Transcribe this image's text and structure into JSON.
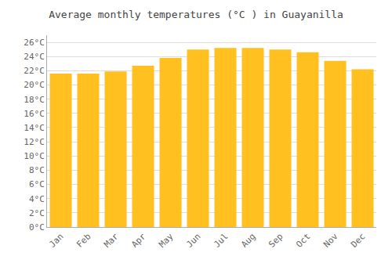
{
  "chart_data": {
    "type": "bar",
    "title": "Average monthly temperatures (°C ) in Guayanilla",
    "categories": [
      "Jan",
      "Feb",
      "Mar",
      "Apr",
      "May",
      "Jun",
      "Jul",
      "Aug",
      "Sep",
      "Oct",
      "Nov",
      "Dec"
    ],
    "values": [
      21.6,
      21.6,
      21.9,
      22.7,
      23.8,
      25.0,
      25.2,
      25.2,
      25.0,
      24.6,
      23.4,
      22.2
    ],
    "color": "#FFC020",
    "ylim": [
      0,
      27
    ],
    "yticks": [
      {
        "value": 0,
        "label": "0°C"
      },
      {
        "value": 2,
        "label": "2°C"
      },
      {
        "value": 4,
        "label": "4°C"
      },
      {
        "value": 6,
        "label": "6°C"
      },
      {
        "value": 8,
        "label": "8°C"
      },
      {
        "value": 10,
        "label": "10°C"
      },
      {
        "value": 12,
        "label": "12°C"
      },
      {
        "value": 14,
        "label": "14°C"
      },
      {
        "value": 16,
        "label": "16°C"
      },
      {
        "value": 18,
        "label": "18°C"
      },
      {
        "value": 20,
        "label": "20°C"
      },
      {
        "value": 22,
        "label": "22°C"
      },
      {
        "value": 24,
        "label": "24°C"
      },
      {
        "value": 26,
        "label": "26°C"
      }
    ],
    "grid": true
  }
}
